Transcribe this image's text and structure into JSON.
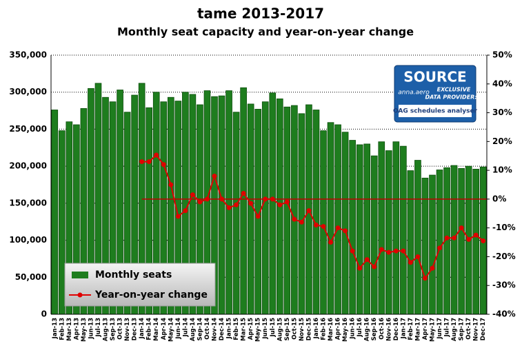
{
  "chart_data": {
    "type": "bar_line",
    "title": "tame 2013-2017",
    "subtitle": "Monthly seat capacity and year-on-year change",
    "categories": [
      "Jan-13",
      "Feb-13",
      "Mar-13",
      "Apr-13",
      "May-13",
      "Jun-13",
      "Jul-13",
      "Aug-13",
      "Sep-13",
      "Oct-13",
      "Nov-13",
      "Dec-13",
      "Jan-14",
      "Feb-14",
      "Mar-14",
      "Apr-14",
      "May-14",
      "Jun-14",
      "Jul-14",
      "Aug-14",
      "Sep-14",
      "Oct-14",
      "Nov-14",
      "Dec-14",
      "Jan-15",
      "Feb-15",
      "Mar-15",
      "Apr-15",
      "May-15",
      "Jun-15",
      "Jul-15",
      "Aug-15",
      "Sep-15",
      "Oct-15",
      "Nov-15",
      "Dec-15",
      "Jan-16",
      "Feb-16",
      "Mar-16",
      "Apr-16",
      "May-16",
      "Jun-16",
      "Jul-16",
      "Aug-16",
      "Sep-16",
      "Oct-16",
      "Nov-16",
      "Dec-16",
      "Jan-17",
      "Feb-17",
      "Mar-17",
      "Apr-17",
      "May-17",
      "Jun-17",
      "Jul-17",
      "Aug-17",
      "Sep-17",
      "Oct-17",
      "Nov-17",
      "Dec-17"
    ],
    "series": [
      {
        "name": "Monthly seats",
        "type": "bar",
        "color": "#1e7d1e",
        "values": [
          276000,
          248000,
          260000,
          256000,
          278000,
          305000,
          312000,
          293000,
          287000,
          303000,
          273000,
          296000,
          312000,
          279000,
          300000,
          287000,
          293000,
          288000,
          300000,
          297000,
          283000,
          302000,
          294000,
          295000,
          302000,
          273000,
          306000,
          284000,
          277000,
          287000,
          299000,
          291000,
          280000,
          282000,
          271000,
          283000,
          276000,
          248000,
          259000,
          256000,
          246000,
          235000,
          229000,
          230000,
          214000,
          233000,
          221000,
          233000,
          227000,
          194000,
          208000,
          184000,
          188000,
          195000,
          198000,
          201000,
          197000,
          200000,
          196000,
          199000
        ]
      },
      {
        "name": "Year-on-year change",
        "type": "line",
        "axis": "y2",
        "color": "#e00000",
        "values": [
          null,
          null,
          null,
          null,
          null,
          null,
          null,
          null,
          null,
          null,
          null,
          null,
          13,
          13,
          15.3,
          12,
          5,
          -6,
          -4,
          1.5,
          -1,
          0,
          8,
          0,
          -3,
          -2,
          2,
          -1.5,
          -6,
          0,
          0,
          -2,
          -1,
          -7,
          -8,
          -4,
          -9,
          -9.5,
          -15,
          -10,
          -11,
          -18,
          -24,
          -21,
          -23.5,
          -17.5,
          -18.5,
          -18,
          -18,
          -22,
          -20,
          -27.5,
          -24,
          -17,
          -13.5,
          -13.5,
          -10,
          -14,
          -12.5,
          -14.5
        ]
      }
    ],
    "reference_lines": [
      {
        "value": 0,
        "axis": "y2",
        "color": "#c00000"
      }
    ],
    "ylim": [
      0,
      350000
    ],
    "yticks": [
      {
        "value": 0,
        "label": "0"
      },
      {
        "value": 50000,
        "label": "50,000"
      },
      {
        "value": 100000,
        "label": "100,000"
      },
      {
        "value": 150000,
        "label": "150,000"
      },
      {
        "value": 200000,
        "label": "200,000"
      },
      {
        "value": 250000,
        "label": "250,000"
      },
      {
        "value": 300000,
        "label": "300,000"
      },
      {
        "value": 350000,
        "label": "350,000"
      }
    ],
    "y2lim": [
      -40,
      50
    ],
    "y2ticks": [
      {
        "value": -40,
        "label": "-40%"
      },
      {
        "value": -30,
        "label": "-30%"
      },
      {
        "value": -20,
        "label": "-20%"
      },
      {
        "value": -10,
        "label": "-10%"
      },
      {
        "value": 0,
        "label": "0%"
      },
      {
        "value": 10,
        "label": "10%"
      },
      {
        "value": 20,
        "label": "20%"
      },
      {
        "value": 30,
        "label": "30%"
      },
      {
        "value": 40,
        "label": "40%"
      },
      {
        "value": 50,
        "label": "50%"
      }
    ],
    "grid": true,
    "legend": "lower left",
    "logo": {
      "title": "SOURCE",
      "brand": "anna.aero",
      "line1": "EXCLUSIVE",
      "line2": "DATA PROVIDER:",
      "footer": "OAG schedules analyser"
    }
  }
}
